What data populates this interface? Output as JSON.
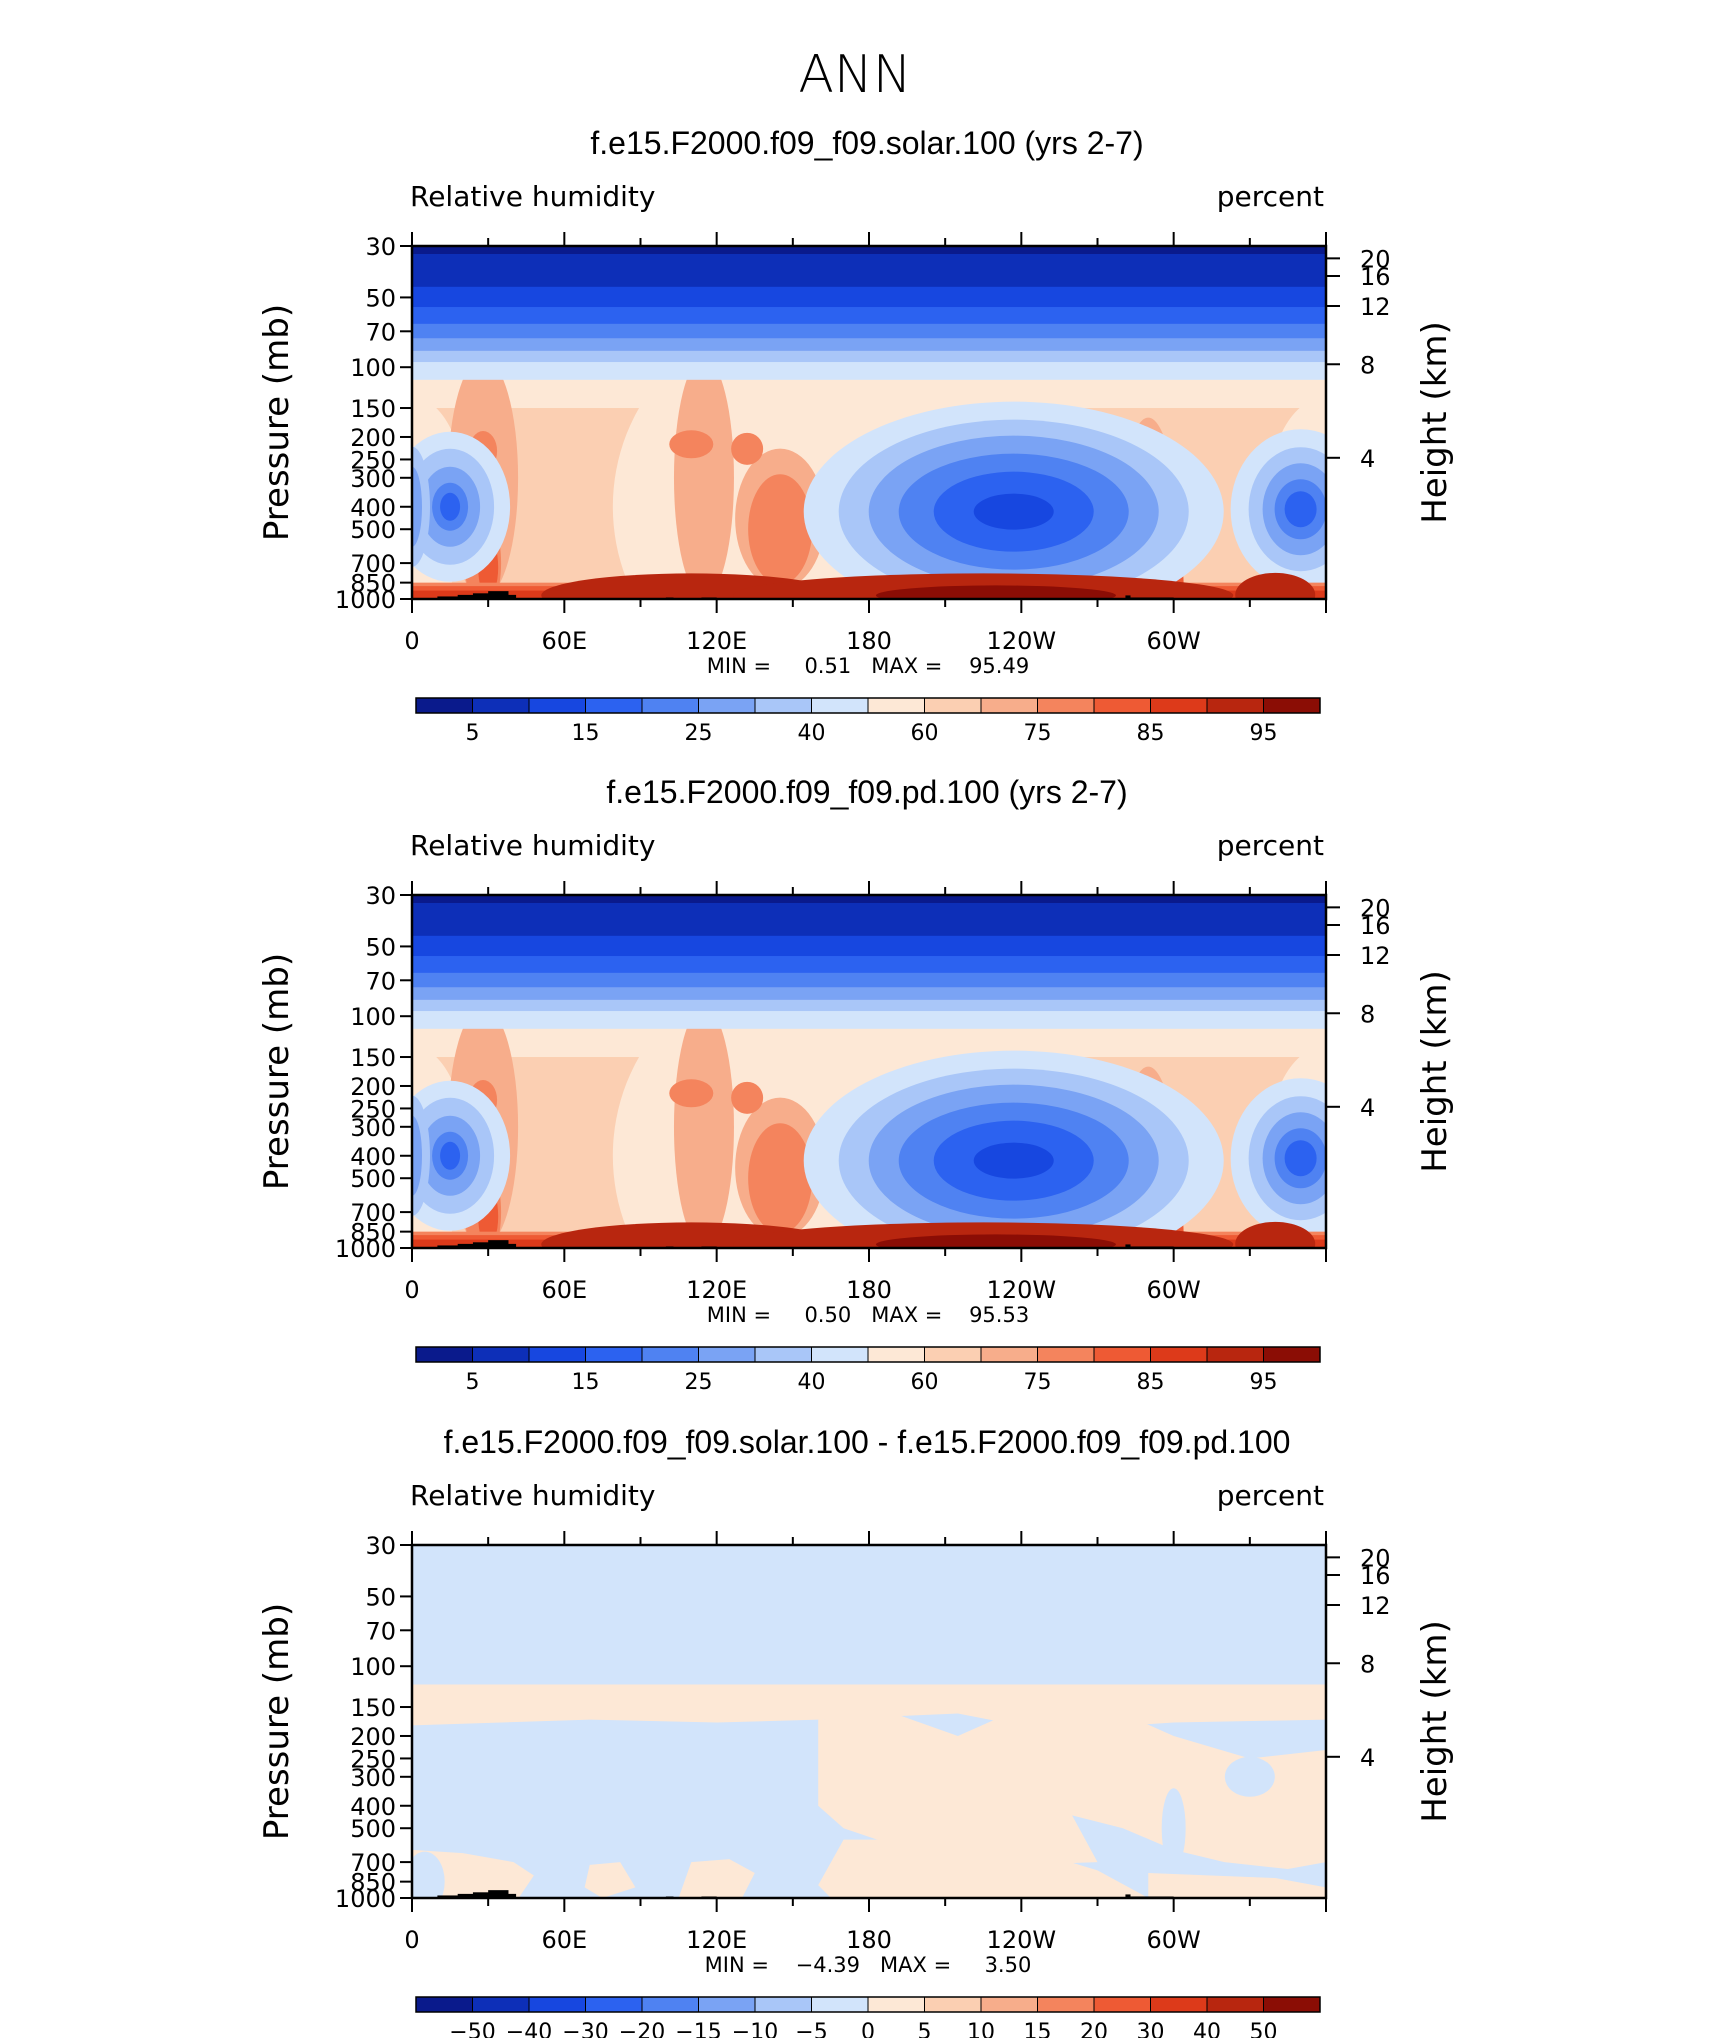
{
  "figure": {
    "title": "ANN"
  },
  "colors": {
    "rh_palette": [
      "#0a1a8c",
      "#0d2fb8",
      "#1747e0",
      "#2c62f0",
      "#4f82f2",
      "#7aa3f4",
      "#a9c6f8",
      "#d2e4fb",
      "#fde8d6",
      "#fbcfb2",
      "#f7ad8b",
      "#f4845d",
      "#ee5a34",
      "#dd3a1a",
      "#b8260f",
      "#8b0d05"
    ],
    "diff_palette": [
      "#0a1a8c",
      "#0d2fb8",
      "#1747e0",
      "#2c62f0",
      "#4f82f2",
      "#7aa3f4",
      "#a9c6f8",
      "#d2e4fb",
      "#fde8d6",
      "#fbcfb2",
      "#f7ad8b",
      "#f4845d",
      "#ee5a34",
      "#dd3a1a",
      "#b8260f",
      "#8b0d05"
    ],
    "topography": "#000000"
  },
  "chart_data": [
    {
      "type": "heatmap",
      "title": "f.e15.F2000.f09_f09.solar.100 (yrs 2-7)",
      "left_label": "Relative humidity",
      "right_label": "percent",
      "ylabel": "Pressure (mb)",
      "ylabel_right": "Height (km)",
      "x_ticks": [
        "0",
        "60E",
        "120E",
        "180",
        "120W",
        "60W"
      ],
      "y_ticks": [
        "30",
        "50",
        "70",
        "100",
        "150",
        "200",
        "250",
        "300",
        "400",
        "500",
        "700",
        "850",
        "1000"
      ],
      "y_right_ticks": [
        "20",
        "16",
        "12",
        "8",
        "4"
      ],
      "stats_text": "MIN =     0.51   MAX =    95.49",
      "min": 0.51,
      "max": 95.49,
      "colorbar_labels": [
        "5",
        "15",
        "25",
        "40",
        "60",
        "75",
        "85",
        "95"
      ],
      "colorbar_levels": [
        5,
        10,
        15,
        20,
        25,
        30,
        40,
        50,
        60,
        65,
        75,
        80,
        85,
        90,
        95
      ]
    },
    {
      "type": "heatmap",
      "title": "f.e15.F2000.f09_f09.pd.100 (yrs 2-7)",
      "left_label": "Relative humidity",
      "right_label": "percent",
      "ylabel": "Pressure (mb)",
      "ylabel_right": "Height (km)",
      "x_ticks": [
        "0",
        "60E",
        "120E",
        "180",
        "120W",
        "60W"
      ],
      "y_ticks": [
        "30",
        "50",
        "70",
        "100",
        "150",
        "200",
        "250",
        "300",
        "400",
        "500",
        "700",
        "850",
        "1000"
      ],
      "y_right_ticks": [
        "20",
        "16",
        "12",
        "8",
        "4"
      ],
      "stats_text": "MIN =     0.50   MAX =    95.53",
      "min": 0.5,
      "max": 95.53,
      "colorbar_labels": [
        "5",
        "15",
        "25",
        "40",
        "60",
        "75",
        "85",
        "95"
      ],
      "colorbar_levels": [
        5,
        10,
        15,
        20,
        25,
        30,
        40,
        50,
        60,
        65,
        75,
        80,
        85,
        90,
        95
      ]
    },
    {
      "type": "heatmap",
      "title": "f.e15.F2000.f09_f09.solar.100 - f.e15.F2000.f09_f09.pd.100",
      "left_label": "Relative humidity",
      "right_label": "percent",
      "ylabel": "Pressure (mb)",
      "ylabel_right": "Height (km)",
      "x_ticks": [
        "0",
        "60E",
        "120E",
        "180",
        "120W",
        "60W"
      ],
      "y_ticks": [
        "30",
        "50",
        "70",
        "100",
        "150",
        "200",
        "250",
        "300",
        "400",
        "500",
        "700",
        "850",
        "1000"
      ],
      "y_right_ticks": [
        "20",
        "16",
        "12",
        "8",
        "4"
      ],
      "stats_text": "MIN =    −4.39   MAX =     3.50",
      "min": -4.39,
      "max": 3.5,
      "colorbar_labels": [
        "−50",
        "−40",
        "−30",
        "−20",
        "−15",
        "−10",
        "−5",
        "0",
        "5",
        "10",
        "15",
        "20",
        "30",
        "40",
        "50"
      ],
      "colorbar_levels": [
        -50,
        -40,
        -30,
        -20,
        -15,
        -10,
        -5,
        0,
        5,
        10,
        15,
        20,
        30,
        40,
        50
      ]
    }
  ]
}
